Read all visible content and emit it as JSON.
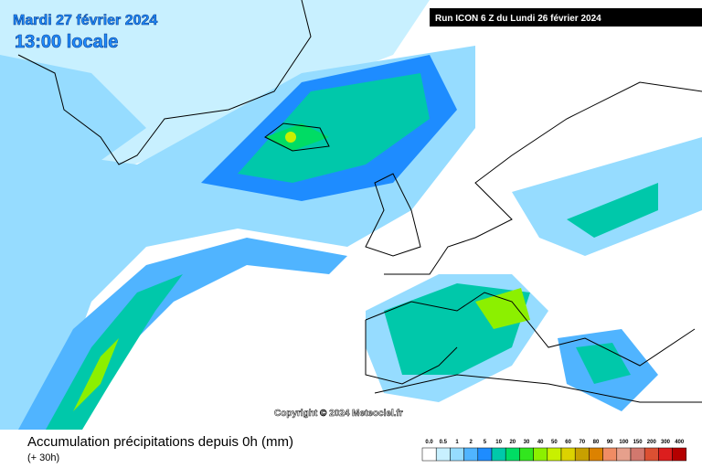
{
  "header": {
    "date": "Mardi 27 février 2024",
    "time": "13:00 locale",
    "run": "Run ICON 6 Z du Lundi 26 février 2024"
  },
  "copyright": "Copyright © 2024 Meteociel.fr",
  "footer": {
    "title": "Accumulation précipitations depuis 0h (mm)",
    "subtitle": "(+ 30h)"
  },
  "legend": [
    {
      "label": "0.0",
      "color": "#ffffff"
    },
    {
      "label": "0.5",
      "color": "#c8f0ff"
    },
    {
      "label": "1",
      "color": "#96dcff"
    },
    {
      "label": "2",
      "color": "#50b4ff"
    },
    {
      "label": "5",
      "color": "#1e8cff"
    },
    {
      "label": "10",
      "color": "#00c8aa"
    },
    {
      "label": "20",
      "color": "#00dc64"
    },
    {
      "label": "30",
      "color": "#32e61e"
    },
    {
      "label": "40",
      "color": "#8cf000"
    },
    {
      "label": "50",
      "color": "#c8f000"
    },
    {
      "label": "60",
      "color": "#dcd200"
    },
    {
      "label": "70",
      "color": "#c8a000"
    },
    {
      "label": "80",
      "color": "#dc8200"
    },
    {
      "label": "90",
      "color": "#f08c64"
    },
    {
      "label": "100",
      "color": "#e6a08c"
    },
    {
      "label": "150",
      "color": "#d2786e"
    },
    {
      "label": "200",
      "color": "#dc5032"
    },
    {
      "label": "300",
      "color": "#dc1e1e"
    },
    {
      "label": "400",
      "color": "#b40000"
    }
  ]
}
